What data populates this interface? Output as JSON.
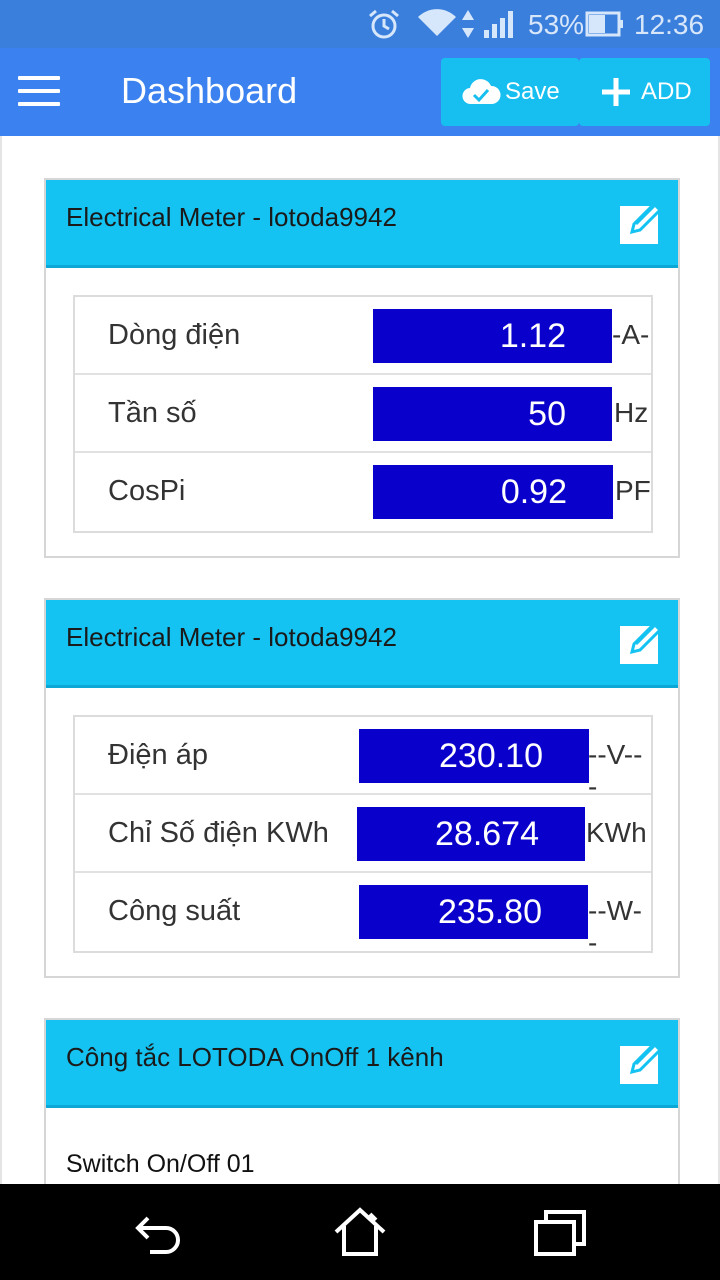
{
  "status_bar": {
    "battery_percent": "53%",
    "time": "12:36",
    "icons": [
      "alarm-icon",
      "wifi-icon",
      "data-transfer-icon",
      "signal-icon",
      "battery-icon"
    ]
  },
  "app_bar": {
    "title": "Dashboard",
    "save_label": "Save",
    "add_label": "ADD",
    "icons": [
      "menu-icon",
      "cloud-check-icon",
      "plus-icon"
    ]
  },
  "colors": {
    "status_bar": "#3a7fdc",
    "app_bar": "#3b82f0",
    "accent": "#15c3f2",
    "value_box": "#0a00cc"
  },
  "cards": [
    {
      "title": "Electrical Meter - lotoda9942",
      "rows": [
        {
          "label": "Dòng điện",
          "value": "1.12",
          "unit": "-A-"
        },
        {
          "label": "Tần số",
          "value": "50",
          "unit": "Hz"
        },
        {
          "label": "CosPi",
          "value": "0.92",
          "unit": "PF"
        }
      ]
    },
    {
      "title": "Electrical Meter - lotoda9942",
      "rows": [
        {
          "label": "Điện áp",
          "value": "230.10",
          "unit": "--V---"
        },
        {
          "label": "Chỉ Số điện KWh",
          "value": "28.674",
          "unit": "KWh"
        },
        {
          "label": "Công suất",
          "value": "235.80",
          "unit": "--W--"
        }
      ]
    },
    {
      "title": "Công tắc LOTODA OnOff 1 kênh",
      "switch_label": "Switch On/Off 01"
    }
  ],
  "nav_bar": {
    "icons": [
      "back-icon",
      "home-icon",
      "recent-apps-icon"
    ]
  }
}
